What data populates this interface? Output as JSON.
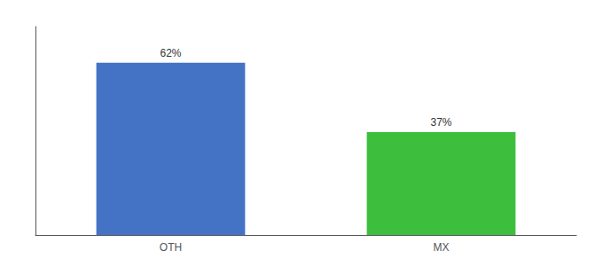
{
  "chart_data": {
    "type": "bar",
    "categories": [
      "OTH",
      "MX"
    ],
    "values": [
      62,
      37
    ],
    "value_labels": [
      "62%",
      "37%"
    ],
    "data_labels": true,
    "colors": [
      "#4472c4",
      "#3dbf3d"
    ],
    "ylim": [
      0,
      75
    ],
    "grid": false,
    "tick_labels": "x"
  }
}
